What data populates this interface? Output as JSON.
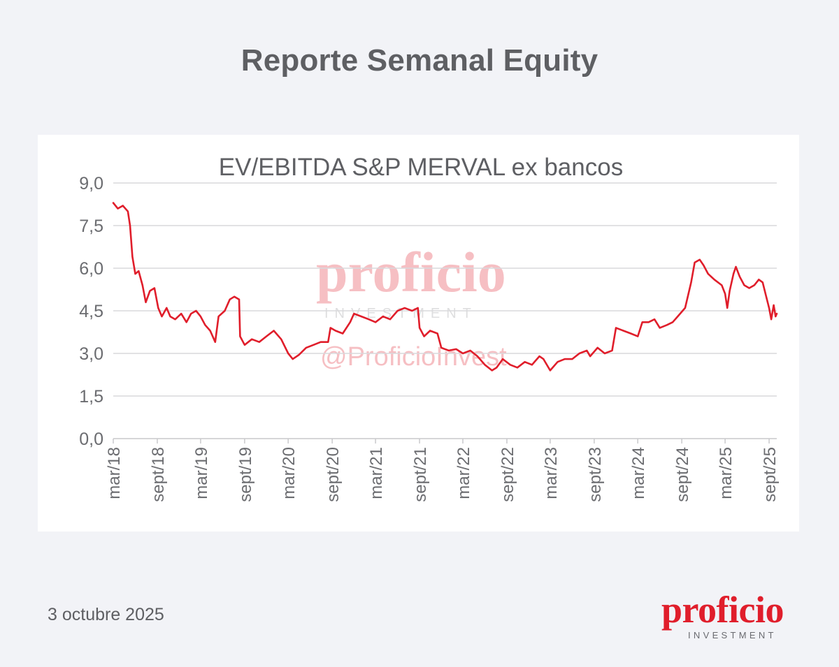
{
  "page": {
    "title": "Reporte Semanal Equity",
    "date": "3 octubre 2025"
  },
  "brand": {
    "name": "proficio",
    "sub": "INVESTMENT",
    "handle": "@ProficioInvest",
    "color": "#e01e2b"
  },
  "chart_data": {
    "type": "line",
    "title": "EV/EBITDA S&P MERVAL ex bancos",
    "xlabel": "",
    "ylabel": "",
    "ylim": [
      0,
      9
    ],
    "yticks": [
      "0,0",
      "1,5",
      "3,0",
      "4,5",
      "6,0",
      "7,5",
      "9,0"
    ],
    "xlim": [
      "2018-03-01",
      "2025-10-03"
    ],
    "xticks": [
      {
        "date": "2018-03-01",
        "label": "mar/18"
      },
      {
        "date": "2018-09-01",
        "label": "sept/18"
      },
      {
        "date": "2019-03-01",
        "label": "mar/19"
      },
      {
        "date": "2019-09-01",
        "label": "sept/19"
      },
      {
        "date": "2020-03-01",
        "label": "mar/20"
      },
      {
        "date": "2020-09-01",
        "label": "sept/20"
      },
      {
        "date": "2021-03-01",
        "label": "mar/21"
      },
      {
        "date": "2021-09-01",
        "label": "sept/21"
      },
      {
        "date": "2022-03-01",
        "label": "mar/22"
      },
      {
        "date": "2022-09-01",
        "label": "sept/22"
      },
      {
        "date": "2023-03-01",
        "label": "mar/23"
      },
      {
        "date": "2023-09-01",
        "label": "sept/23"
      },
      {
        "date": "2024-03-01",
        "label": "mar/24"
      },
      {
        "date": "2024-09-01",
        "label": "sept/24"
      },
      {
        "date": "2025-03-01",
        "label": "mar/25"
      },
      {
        "date": "2025-09-01",
        "label": "sept/25"
      }
    ],
    "grid": true,
    "series": [
      {
        "color": "#e01e2b",
        "points": [
          [
            "2018-03-01",
            8.3
          ],
          [
            "2018-03-20",
            8.1
          ],
          [
            "2018-04-10",
            8.2
          ],
          [
            "2018-05-01",
            8.0
          ],
          [
            "2018-05-10",
            7.5
          ],
          [
            "2018-05-20",
            6.4
          ],
          [
            "2018-06-01",
            5.8
          ],
          [
            "2018-06-15",
            5.9
          ],
          [
            "2018-07-01",
            5.4
          ],
          [
            "2018-07-15",
            4.8
          ],
          [
            "2018-08-01",
            5.2
          ],
          [
            "2018-08-20",
            5.3
          ],
          [
            "2018-09-05",
            4.6
          ],
          [
            "2018-09-20",
            4.3
          ],
          [
            "2018-10-10",
            4.6
          ],
          [
            "2018-10-25",
            4.3
          ],
          [
            "2018-11-15",
            4.2
          ],
          [
            "2018-12-10",
            4.4
          ],
          [
            "2019-01-01",
            4.1
          ],
          [
            "2019-01-20",
            4.4
          ],
          [
            "2019-02-10",
            4.5
          ],
          [
            "2019-03-01",
            4.3
          ],
          [
            "2019-03-20",
            4.0
          ],
          [
            "2019-04-10",
            3.8
          ],
          [
            "2019-05-01",
            3.4
          ],
          [
            "2019-05-15",
            4.3
          ],
          [
            "2019-06-10",
            4.5
          ],
          [
            "2019-07-01",
            4.9
          ],
          [
            "2019-07-20",
            5.0
          ],
          [
            "2019-08-09",
            4.9
          ],
          [
            "2019-08-13",
            3.6
          ],
          [
            "2019-09-01",
            3.3
          ],
          [
            "2019-10-01",
            3.5
          ],
          [
            "2019-11-01",
            3.4
          ],
          [
            "2019-12-01",
            3.6
          ],
          [
            "2020-01-01",
            3.8
          ],
          [
            "2020-02-01",
            3.5
          ],
          [
            "2020-03-01",
            3.0
          ],
          [
            "2020-03-20",
            2.8
          ],
          [
            "2020-04-15",
            2.95
          ],
          [
            "2020-05-15",
            3.2
          ],
          [
            "2020-06-15",
            3.3
          ],
          [
            "2020-07-15",
            3.4
          ],
          [
            "2020-08-15",
            3.4
          ],
          [
            "2020-08-25",
            3.9
          ],
          [
            "2020-09-15",
            3.8
          ],
          [
            "2020-10-15",
            3.7
          ],
          [
            "2020-11-15",
            4.1
          ],
          [
            "2020-12-01",
            4.4
          ],
          [
            "2021-01-01",
            4.3
          ],
          [
            "2021-02-01",
            4.2
          ],
          [
            "2021-03-01",
            4.1
          ],
          [
            "2021-04-01",
            4.3
          ],
          [
            "2021-05-01",
            4.2
          ],
          [
            "2021-06-01",
            4.5
          ],
          [
            "2021-07-01",
            4.6
          ],
          [
            "2021-08-01",
            4.5
          ],
          [
            "2021-08-25",
            4.6
          ],
          [
            "2021-09-01",
            3.9
          ],
          [
            "2021-09-20",
            3.6
          ],
          [
            "2021-10-15",
            3.8
          ],
          [
            "2021-11-15",
            3.7
          ],
          [
            "2021-12-01",
            3.2
          ],
          [
            "2022-01-01",
            3.1
          ],
          [
            "2022-02-01",
            3.15
          ],
          [
            "2022-03-01",
            3.0
          ],
          [
            "2022-04-01",
            3.1
          ],
          [
            "2022-05-01",
            2.9
          ],
          [
            "2022-06-01",
            2.6
          ],
          [
            "2022-07-01",
            2.4
          ],
          [
            "2022-07-20",
            2.5
          ],
          [
            "2022-08-15",
            2.8
          ],
          [
            "2022-09-15",
            2.6
          ],
          [
            "2022-10-15",
            2.5
          ],
          [
            "2022-11-15",
            2.7
          ],
          [
            "2022-12-15",
            2.6
          ],
          [
            "2023-01-15",
            2.9
          ],
          [
            "2023-02-01",
            2.8
          ],
          [
            "2023-03-01",
            2.4
          ],
          [
            "2023-04-01",
            2.7
          ],
          [
            "2023-05-01",
            2.8
          ],
          [
            "2023-06-01",
            2.8
          ],
          [
            "2023-07-01",
            3.0
          ],
          [
            "2023-08-01",
            3.1
          ],
          [
            "2023-08-15",
            2.9
          ],
          [
            "2023-09-15",
            3.2
          ],
          [
            "2023-10-15",
            3.0
          ],
          [
            "2023-11-15",
            3.1
          ],
          [
            "2023-12-01",
            3.9
          ],
          [
            "2024-01-01",
            3.8
          ],
          [
            "2024-02-01",
            3.7
          ],
          [
            "2024-03-01",
            3.6
          ],
          [
            "2024-03-20",
            4.1
          ],
          [
            "2024-04-15",
            4.1
          ],
          [
            "2024-05-10",
            4.2
          ],
          [
            "2024-06-01",
            3.9
          ],
          [
            "2024-07-01",
            4.0
          ],
          [
            "2024-07-25",
            4.1
          ],
          [
            "2024-08-15",
            4.3
          ],
          [
            "2024-09-15",
            4.6
          ],
          [
            "2024-10-10",
            5.5
          ],
          [
            "2024-10-25",
            6.2
          ],
          [
            "2024-11-15",
            6.3
          ],
          [
            "2024-12-01",
            6.1
          ],
          [
            "2024-12-20",
            5.8
          ],
          [
            "2025-01-15",
            5.6
          ],
          [
            "2025-02-15",
            5.4
          ],
          [
            "2025-03-01",
            5.1
          ],
          [
            "2025-03-10",
            4.6
          ],
          [
            "2025-03-20",
            5.2
          ],
          [
            "2025-04-05",
            5.8
          ],
          [
            "2025-04-15",
            6.05
          ],
          [
            "2025-05-01",
            5.7
          ],
          [
            "2025-05-20",
            5.4
          ],
          [
            "2025-06-10",
            5.3
          ],
          [
            "2025-07-01",
            5.4
          ],
          [
            "2025-07-20",
            5.6
          ],
          [
            "2025-08-05",
            5.5
          ],
          [
            "2025-08-20",
            5.0
          ],
          [
            "2025-09-01",
            4.6
          ],
          [
            "2025-09-10",
            4.2
          ],
          [
            "2025-09-20",
            4.7
          ],
          [
            "2025-09-28",
            4.3
          ],
          [
            "2025-10-03",
            4.4
          ]
        ]
      }
    ]
  }
}
